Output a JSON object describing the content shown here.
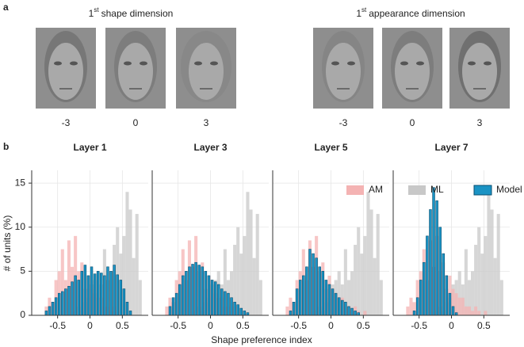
{
  "panel_a": {
    "label": "a",
    "groups": [
      {
        "title_num": "1",
        "title_sup": "st",
        "title_rest": "shape dimension",
        "levels": [
          "-3",
          "0",
          "3"
        ]
      },
      {
        "title_num": "1",
        "title_sup": "st",
        "title_rest": "appearance dimension",
        "levels": [
          "-3",
          "0",
          "3"
        ]
      }
    ]
  },
  "panel_b": {
    "label": "b",
    "xlabel": "Shape preference index",
    "ylabel": "# of units (%)"
  },
  "chart_data": [
    {
      "type": "histogram",
      "title": "Layer 1",
      "bins": [
        -0.8,
        -0.75,
        -0.7,
        -0.65,
        -0.6,
        -0.55,
        -0.5,
        -0.45,
        -0.4,
        -0.35,
        -0.3,
        -0.25,
        -0.2,
        -0.15,
        -0.1,
        -0.05,
        0,
        0.05,
        0.1,
        0.15,
        0.2,
        0.25,
        0.3,
        0.35,
        0.4,
        0.45,
        0.5,
        0.55,
        0.6,
        0.65,
        0.7,
        0.75,
        0.8
      ],
      "xlim": [
        -0.9,
        0.9
      ],
      "xticks": [
        -0.5,
        0,
        0.5
      ],
      "ylim": [
        0,
        16
      ],
      "yticks": [
        0,
        5,
        10,
        15
      ],
      "grid": true,
      "series": [
        {
          "name": "ML",
          "color": "#c8c8c8",
          "values": [
            0,
            0,
            0,
            0,
            0,
            0,
            0,
            0,
            0,
            0,
            0,
            0.5,
            1,
            0.5,
            1.5,
            2,
            3.5,
            4,
            5,
            3.5,
            7.5,
            4,
            5,
            8,
            10,
            7,
            9,
            14,
            12,
            6.5,
            11.5,
            4
          ]
        },
        {
          "name": "AM",
          "color": "#f4b3b3",
          "values": [
            0,
            0,
            1,
            2,
            1.5,
            4,
            5,
            7.5,
            4,
            8.5,
            5.5,
            9,
            5,
            6,
            3,
            4.5,
            3,
            2.5,
            2,
            2,
            1,
            1,
            0.5,
            1,
            0.5,
            0,
            0.5,
            0,
            0,
            0,
            0,
            0
          ]
        },
        {
          "name": "Model",
          "color": "#1a93c4",
          "values": [
            0,
            0,
            0.5,
            1,
            1.5,
            2,
            2.5,
            2.7,
            3,
            3.3,
            3.8,
            4.5,
            4,
            5,
            5.7,
            4.5,
            5.5,
            4.7,
            5,
            4.8,
            4.5,
            5.5,
            5,
            5.7,
            4.6,
            4,
            3,
            1.5,
            0.5,
            0,
            0,
            0
          ]
        }
      ]
    },
    {
      "type": "histogram",
      "title": "Layer 3",
      "bins": [
        -0.8,
        -0.75,
        -0.7,
        -0.65,
        -0.6,
        -0.55,
        -0.5,
        -0.45,
        -0.4,
        -0.35,
        -0.3,
        -0.25,
        -0.2,
        -0.15,
        -0.1,
        -0.05,
        0,
        0.05,
        0.1,
        0.15,
        0.2,
        0.25,
        0.3,
        0.35,
        0.4,
        0.45,
        0.5,
        0.55,
        0.6,
        0.65,
        0.7,
        0.75,
        0.8
      ],
      "xlim": [
        -0.9,
        0.9
      ],
      "xticks": [
        -0.5,
        0,
        0.5
      ],
      "ylim": [
        0,
        16
      ],
      "yticks": [
        0,
        5,
        10,
        15
      ],
      "grid": true,
      "series": [
        {
          "name": "ML",
          "color": "#c8c8c8",
          "values": [
            0,
            0,
            0,
            0,
            0,
            0,
            0,
            0,
            0,
            0,
            0,
            0.5,
            1,
            0.5,
            1.5,
            2,
            3.5,
            4,
            5,
            3.5,
            7.5,
            4,
            5,
            8,
            10,
            7,
            9,
            14,
            12,
            6.5,
            11.5,
            4
          ]
        },
        {
          "name": "AM",
          "color": "#f4b3b3",
          "values": [
            0,
            0,
            1,
            2,
            1.5,
            4,
            5,
            7.5,
            4,
            8.5,
            5.5,
            9,
            5,
            6,
            3,
            4.5,
            3,
            2.5,
            2,
            2,
            1,
            1,
            0.5,
            1,
            0.5,
            0,
            0.5,
            0,
            0,
            0,
            0,
            0
          ]
        },
        {
          "name": "Model",
          "color": "#1a93c4",
          "values": [
            0,
            0,
            0,
            1,
            2,
            2.5,
            3.5,
            4.5,
            5,
            5.5,
            5.8,
            6,
            5.7,
            5.5,
            5,
            4.5,
            4,
            3.8,
            3.5,
            3,
            2.7,
            2.5,
            2,
            1.5,
            1.2,
            0.8,
            0.5,
            0.3,
            0,
            0,
            0,
            0
          ]
        }
      ]
    },
    {
      "type": "histogram",
      "title": "Layer 5",
      "bins": [
        -0.8,
        -0.75,
        -0.7,
        -0.65,
        -0.6,
        -0.55,
        -0.5,
        -0.45,
        -0.4,
        -0.35,
        -0.3,
        -0.25,
        -0.2,
        -0.15,
        -0.1,
        -0.05,
        0,
        0.05,
        0.1,
        0.15,
        0.2,
        0.25,
        0.3,
        0.35,
        0.4,
        0.45,
        0.5,
        0.55,
        0.6,
        0.65,
        0.7,
        0.75,
        0.8
      ],
      "xlim": [
        -0.9,
        0.9
      ],
      "xticks": [
        -0.5,
        0,
        0.5
      ],
      "ylim": [
        0,
        16
      ],
      "yticks": [
        0,
        5,
        10,
        15
      ],
      "grid": true,
      "series": [
        {
          "name": "ML",
          "color": "#c8c8c8",
          "values": [
            0,
            0,
            0,
            0,
            0,
            0,
            0,
            0,
            0,
            0,
            0,
            0.5,
            1,
            0.5,
            1.5,
            2,
            3.5,
            4,
            5,
            3.5,
            7.5,
            4,
            5,
            8,
            10,
            7,
            9,
            14,
            12,
            6.5,
            11.5,
            4
          ]
        },
        {
          "name": "AM",
          "color": "#f4b3b3",
          "values": [
            0,
            0,
            1,
            2,
            1.5,
            4,
            5,
            7.5,
            4,
            8.5,
            5.5,
            9,
            5,
            6,
            3,
            4.5,
            3,
            2.5,
            2,
            2,
            1,
            1,
            0.5,
            1,
            0.5,
            0,
            0.5,
            0,
            0,
            0,
            0,
            0
          ]
        },
        {
          "name": "Model",
          "color": "#1a93c4",
          "values": [
            0,
            0,
            0,
            0.5,
            1.5,
            3,
            4,
            4.5,
            5.5,
            7.5,
            7,
            6.5,
            5.5,
            5,
            4,
            3.5,
            3,
            2.5,
            2,
            1.7,
            1.5,
            1,
            0.8,
            0.5,
            0.3,
            0,
            0,
            0,
            0,
            0,
            0,
            0
          ]
        }
      ]
    },
    {
      "type": "histogram",
      "title": "Layer 7",
      "bins": [
        -0.8,
        -0.75,
        -0.7,
        -0.65,
        -0.6,
        -0.55,
        -0.5,
        -0.45,
        -0.4,
        -0.35,
        -0.3,
        -0.25,
        -0.2,
        -0.15,
        -0.1,
        -0.05,
        0,
        0.05,
        0.1,
        0.15,
        0.2,
        0.25,
        0.3,
        0.35,
        0.4,
        0.45,
        0.5,
        0.55,
        0.6,
        0.65,
        0.7,
        0.75,
        0.8
      ],
      "xlim": [
        -0.9,
        0.9
      ],
      "xticks": [
        -0.5,
        0,
        0.5
      ],
      "ylim": [
        0,
        16
      ],
      "yticks": [
        0,
        5,
        10,
        15
      ],
      "grid": true,
      "legend": "top",
      "series": [
        {
          "name": "ML",
          "color": "#c8c8c8",
          "values": [
            0,
            0,
            0,
            0,
            0,
            0,
            0,
            0,
            0,
            0,
            0,
            0.5,
            1,
            0.5,
            1.5,
            2,
            3.5,
            4,
            5,
            3.5,
            7.5,
            4,
            5,
            8,
            10,
            7,
            9,
            14,
            12,
            6.5,
            11.5,
            4
          ]
        },
        {
          "name": "AM",
          "color": "#f4b3b3",
          "values": [
            0,
            0,
            1,
            2,
            1.5,
            4,
            5,
            7.5,
            4,
            8.5,
            5.5,
            9,
            5,
            6,
            3,
            4.5,
            3,
            2.5,
            2,
            2,
            1,
            1,
            0.5,
            1,
            0.5,
            0,
            0.5,
            0,
            0,
            0,
            0,
            0
          ]
        },
        {
          "name": "Model",
          "color": "#1a93c4",
          "values": [
            0,
            0,
            0,
            0,
            0.5,
            2,
            4,
            6,
            9,
            12,
            14.5,
            13,
            10,
            7,
            4.5,
            2.5,
            1,
            0.3,
            0,
            0,
            0,
            0,
            0,
            0,
            0,
            0,
            0,
            0,
            0,
            0,
            0,
            0
          ]
        }
      ]
    }
  ]
}
